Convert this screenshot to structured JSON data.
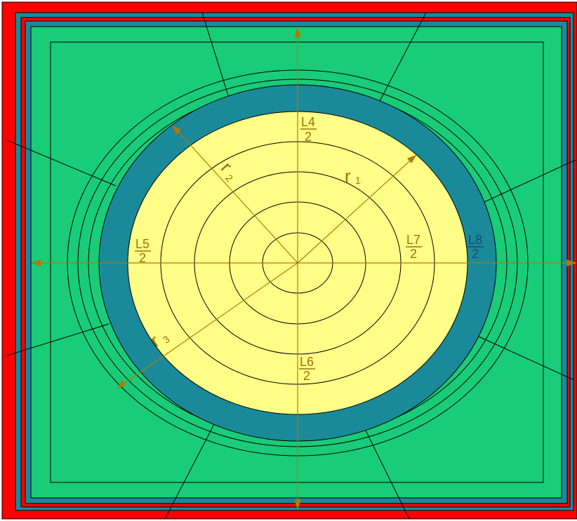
{
  "colors": {
    "outer_red": "#ff0000",
    "steel_blue": "#1a8a9a",
    "green": "#19cc78",
    "pale_yellow": "#ffff88",
    "dark_line": "#000000",
    "dimension_line": "#b07a00",
    "label_gold": "#a07000",
    "label_dark_blue": "#1a4a70"
  },
  "labels": {
    "l4_num": "L4",
    "l4_den": "2",
    "l5_num": "L5",
    "l5_den": "2",
    "l6_num": "L6",
    "l6_den": "2",
    "l7_num": "L7",
    "l7_den": "2",
    "l8_num": "L8",
    "l8_den": "2",
    "r1_main": "r",
    "r1_sub": "1",
    "r2_main": "r",
    "r2_sub": "2",
    "r3_main": "r",
    "r3_sub": "3"
  }
}
